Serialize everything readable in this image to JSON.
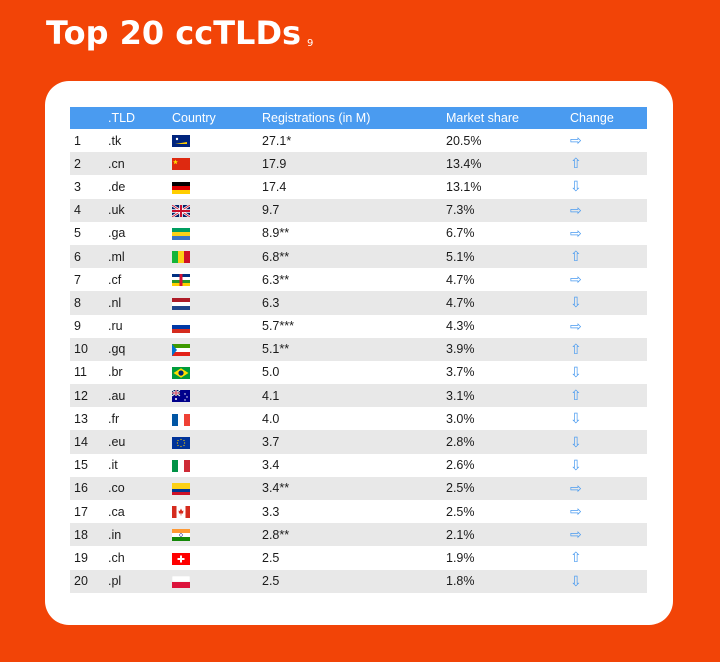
{
  "title": "Top 20 ccTLDs",
  "footnote": "9",
  "columns": [
    "",
    ".TLD",
    "Country",
    "Registrations (in M)",
    "Market share",
    "Change"
  ],
  "rows": [
    {
      "rank": "1",
      "tld": ".tk",
      "flag": "tokelau",
      "reg": "27.1*",
      "share": "20.5%",
      "change": "right"
    },
    {
      "rank": "2",
      "tld": ".cn",
      "flag": "china",
      "reg": "17.9",
      "share": "13.4%",
      "change": "up"
    },
    {
      "rank": "3",
      "tld": ".de",
      "flag": "germany",
      "reg": "17.4",
      "share": "13.1%",
      "change": "down"
    },
    {
      "rank": "4",
      "tld": ".uk",
      "flag": "uk",
      "reg": "9.7",
      "share": "7.3%",
      "change": "right"
    },
    {
      "rank": "5",
      "tld": ".ga",
      "flag": "gabon",
      "reg": "8.9**",
      "share": "6.7%",
      "change": "right"
    },
    {
      "rank": "6",
      "tld": ".ml",
      "flag": "mali",
      "reg": "6.8**",
      "share": "5.1%",
      "change": "up"
    },
    {
      "rank": "7",
      "tld": ".cf",
      "flag": "central-african-republic",
      "reg": "6.3**",
      "share": "4.7%",
      "change": "right"
    },
    {
      "rank": "8",
      "tld": ".nl",
      "flag": "netherlands",
      "reg": "6.3",
      "share": "4.7%",
      "change": "down"
    },
    {
      "rank": "9",
      "tld": ".ru",
      "flag": "russia",
      "reg": "5.7***",
      "share": "4.3%",
      "change": "right"
    },
    {
      "rank": "10",
      "tld": ".gq",
      "flag": "equatorial-guinea",
      "reg": "5.1**",
      "share": "3.9%",
      "change": "up"
    },
    {
      "rank": "11",
      "tld": ".br",
      "flag": "brazil",
      "reg": "5.0",
      "share": "3.7%",
      "change": "down"
    },
    {
      "rank": "12",
      "tld": ".au",
      "flag": "australia",
      "reg": "4.1",
      "share": "3.1%",
      "change": "up"
    },
    {
      "rank": "13",
      "tld": ".fr",
      "flag": "france",
      "reg": "4.0",
      "share": "3.0%",
      "change": "down"
    },
    {
      "rank": "14",
      "tld": ".eu",
      "flag": "eu",
      "reg": "3.7",
      "share": "2.8%",
      "change": "down"
    },
    {
      "rank": "15",
      "tld": ".it",
      "flag": "italy",
      "reg": "3.4",
      "share": "2.6%",
      "change": "down"
    },
    {
      "rank": "16",
      "tld": ".co",
      "flag": "colombia",
      "reg": "3.4**",
      "share": "2.5%",
      "change": "right"
    },
    {
      "rank": "17",
      "tld": ".ca",
      "flag": "canada",
      "reg": "3.3",
      "share": "2.5%",
      "change": "right"
    },
    {
      "rank": "18",
      "tld": ".in",
      "flag": "india",
      "reg": "2.8**",
      "share": "2.1%",
      "change": "right"
    },
    {
      "rank": "19",
      "tld": ".ch",
      "flag": "switzerland",
      "reg": "2.5",
      "share": "1.9%",
      "change": "up"
    },
    {
      "rank": "20",
      "tld": ".pl",
      "flag": "poland",
      "reg": "2.5",
      "share": "1.8%",
      "change": "down"
    }
  ],
  "colors": {
    "background": "#f24407",
    "header": "#4a9bf0",
    "stripe": "#e8e8e8"
  }
}
